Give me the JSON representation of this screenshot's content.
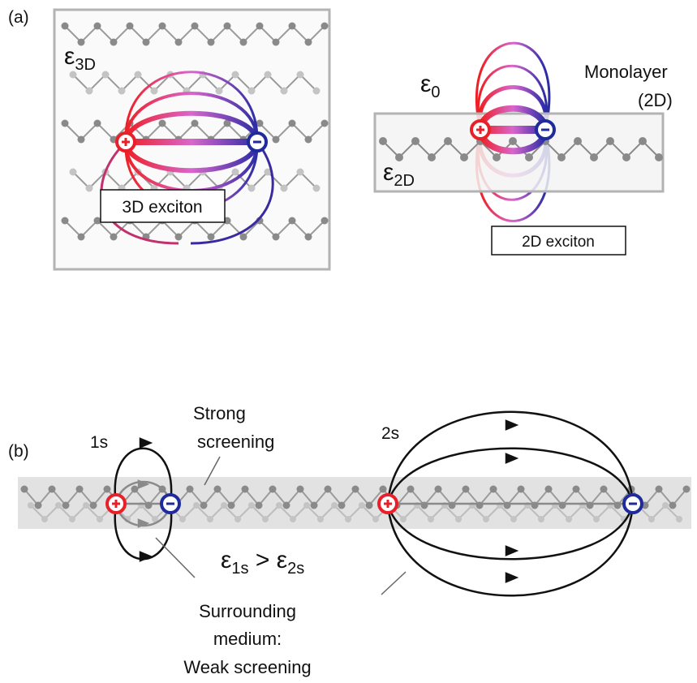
{
  "panel_a": {
    "label": "(a)",
    "eps_3d": {
      "base": "ε",
      "sub": "3D"
    },
    "eps_0": {
      "base": "ε",
      "sub": "0"
    },
    "eps_2d": {
      "base": "ε",
      "sub": "2D"
    },
    "monolayer_line1": "Monolayer",
    "monolayer_line2": "(2D)",
    "box_3d": "3D exciton",
    "box_2d": "2D exciton"
  },
  "panel_b": {
    "label": "(b)",
    "state_1s": "1s",
    "state_2s": "2s",
    "strong_line1": "Strong",
    "strong_line2": "screening",
    "inequality": {
      "eps": "ε",
      "sub_a": "1s",
      "gt": " > ",
      "sub_b": "2s"
    },
    "surround_line1": "Surrounding",
    "surround_line2": "medium:",
    "surround_line3": "Weak screening"
  },
  "colors": {
    "positive": "#e8202a",
    "negative": "#1f2a9c",
    "lattice_dark": "#8a8a8a",
    "lattice_light": "#c4c4c4",
    "band": "#e2e2e2"
  }
}
